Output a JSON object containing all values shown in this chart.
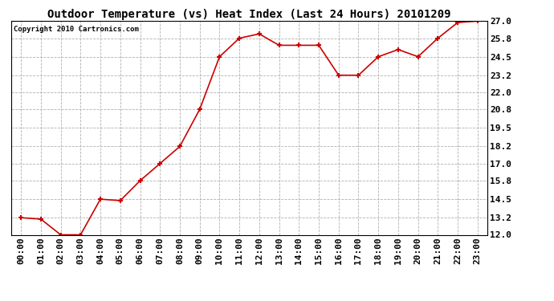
{
  "title": "Outdoor Temperature (vs) Heat Index (Last 24 Hours) 20101209",
  "copyright_text": "Copyright 2010 Cartronics.com",
  "x_labels": [
    "00:00",
    "01:00",
    "02:00",
    "03:00",
    "04:00",
    "05:00",
    "06:00",
    "07:00",
    "08:00",
    "09:00",
    "10:00",
    "11:00",
    "12:00",
    "13:00",
    "14:00",
    "15:00",
    "16:00",
    "17:00",
    "18:00",
    "19:00",
    "20:00",
    "21:00",
    "22:00",
    "23:00"
  ],
  "y_values": [
    13.2,
    13.1,
    12.0,
    12.0,
    14.5,
    14.4,
    15.8,
    17.0,
    18.2,
    20.8,
    24.5,
    25.8,
    26.1,
    25.3,
    25.3,
    25.3,
    23.2,
    23.2,
    24.5,
    25.0,
    24.5,
    25.8,
    26.9,
    27.0
  ],
  "line_color": "#cc0000",
  "marker": "+",
  "marker_size": 5,
  "marker_color": "#cc0000",
  "background_color": "#ffffff",
  "plot_bg_color": "#ffffff",
  "grid_color": "#b0b0b0",
  "grid_style": "--",
  "ylim": [
    12.0,
    27.0
  ],
  "yticks": [
    12.0,
    13.2,
    14.5,
    15.8,
    17.0,
    18.2,
    19.5,
    20.8,
    22.0,
    23.2,
    24.5,
    25.8,
    27.0
  ],
  "title_fontsize": 10,
  "copyright_fontsize": 6.5,
  "tick_fontsize": 8,
  "line_width": 1.2
}
